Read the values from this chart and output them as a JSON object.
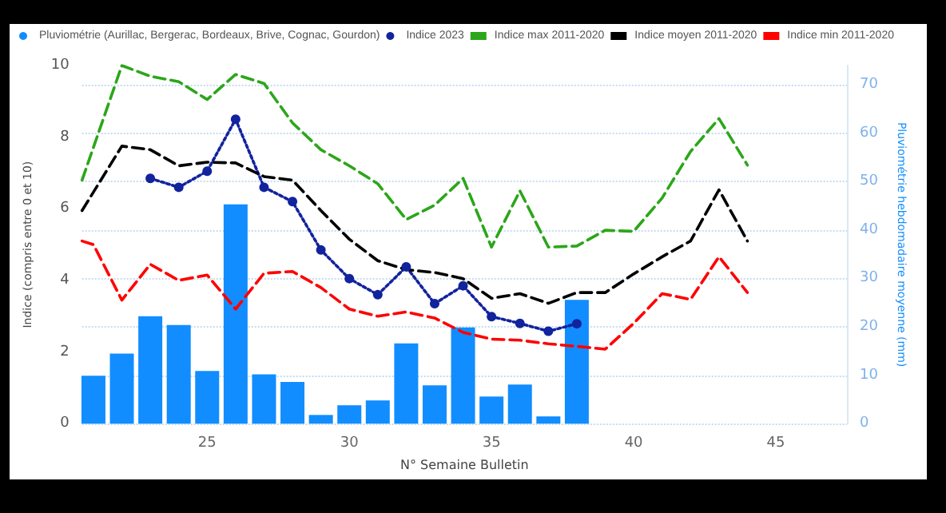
{
  "chart_data": {
    "type": "line",
    "xlabel": "N° Semaine Bulletin",
    "ylabel": "Indice (compris entre 0 et 10)",
    "y2label": "Pluviométrie hebdomadaire moyenne (mm)",
    "xlim": [
      20.6,
      47.5
    ],
    "xticks": [
      25,
      30,
      35,
      40,
      45
    ],
    "ylim": [
      0,
      10
    ],
    "yticks": [
      0,
      2,
      4,
      6,
      8,
      10
    ],
    "y2lim": [
      0,
      74
    ],
    "y2ticks": [
      0,
      10,
      20,
      30,
      40,
      50,
      60,
      70
    ],
    "grid": "y",
    "legend": "top left",
    "series": [
      {
        "name": "Pluviométrie (Aurillac, Bergerac, Bordeaux, Brive, Cognac, Gourdon)",
        "type": "bar",
        "axis": "y2",
        "color": "#118dff",
        "x": [
          21,
          22,
          23,
          24,
          25,
          26,
          27,
          28,
          29,
          30,
          31,
          32,
          33,
          34,
          35,
          36,
          37,
          38
        ],
        "values": [
          9.9,
          14.5,
          22.2,
          20.4,
          10.9,
          45.3,
          10.2,
          8.6,
          1.8,
          3.8,
          4.8,
          16.6,
          7.9,
          19.9,
          5.6,
          8.1,
          1.5,
          25.6
        ]
      },
      {
        "name": "Indice 2023",
        "color": "#12239e",
        "marker": "circle",
        "line_style": "dotted",
        "x": [
          23,
          24,
          25,
          26,
          27,
          28,
          29,
          30,
          31,
          32,
          33,
          34,
          35,
          36,
          37,
          38
        ],
        "values": [
          6.85,
          6.6,
          7.05,
          8.5,
          6.6,
          6.2,
          4.85,
          4.05,
          3.6,
          4.38,
          3.35,
          3.85,
          2.99,
          2.8,
          2.58,
          2.79
        ]
      },
      {
        "name": "Indice max 2011-2020",
        "color": "#2ca61a",
        "marker": "none",
        "line_style": "dashed",
        "x": [
          20.6,
          22,
          23,
          24,
          25,
          26,
          27,
          28,
          29,
          30,
          31,
          32,
          33,
          34,
          35,
          36,
          37,
          38,
          39,
          40,
          41,
          42,
          43,
          44
        ],
        "values": [
          6.8,
          10.0,
          9.7,
          9.55,
          9.05,
          9.75,
          9.5,
          8.4,
          7.65,
          7.2,
          6.7,
          5.7,
          6.1,
          6.85,
          4.93,
          6.5,
          4.93,
          4.96,
          5.4,
          5.37,
          6.3,
          7.6,
          8.52,
          7.22
        ]
      },
      {
        "name": "Indice moyen 2011-2020",
        "color": "#000000",
        "marker": "none",
        "line_style": "dashed",
        "x": [
          20.6,
          22,
          23,
          24,
          25,
          26,
          27,
          28,
          29,
          30,
          31,
          32,
          33,
          34,
          35,
          36,
          37,
          38,
          39,
          40,
          41,
          42,
          43,
          44
        ],
        "values": [
          5.95,
          7.75,
          7.65,
          7.2,
          7.3,
          7.28,
          6.9,
          6.8,
          5.95,
          5.15,
          4.55,
          4.3,
          4.22,
          4.05,
          3.5,
          3.63,
          3.36,
          3.66,
          3.66,
          4.18,
          4.66,
          5.1,
          6.53,
          5.1
        ]
      },
      {
        "name": "Indice min 2011-2020",
        "color": "#ff0000",
        "marker": "none",
        "line_style": "dashed",
        "x": [
          20.6,
          21,
          22,
          23,
          24,
          25,
          26,
          27,
          28,
          29,
          30,
          31,
          32,
          33,
          34,
          35,
          36,
          37,
          38,
          39,
          40,
          41,
          42,
          43,
          44
        ],
        "values": [
          5.1,
          5.0,
          3.45,
          4.45,
          4.0,
          4.15,
          3.2,
          4.2,
          4.25,
          3.8,
          3.2,
          3.0,
          3.12,
          2.95,
          2.55,
          2.36,
          2.33,
          2.23,
          2.16,
          2.08,
          2.8,
          3.63,
          3.47,
          4.66,
          3.66
        ]
      }
    ]
  }
}
